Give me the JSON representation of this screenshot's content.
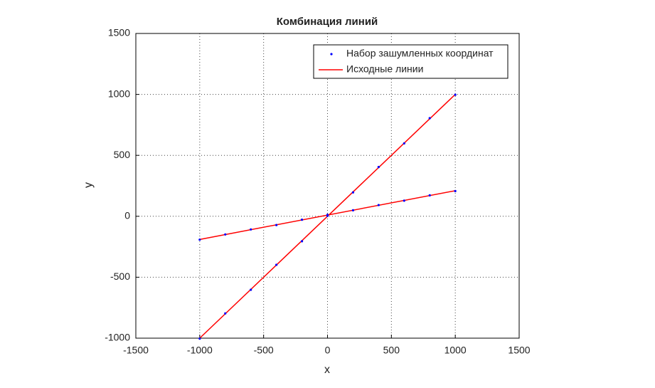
{
  "chart_data": {
    "type": "line",
    "title": "Комбинация линий",
    "xlabel": "x",
    "ylabel": "y",
    "xlim": [
      -1500,
      1500
    ],
    "ylim": [
      -1000,
      1500
    ],
    "xticks": [
      -1500,
      -1000,
      -500,
      0,
      500,
      1000,
      1500
    ],
    "yticks": [
      -1000,
      -500,
      0,
      500,
      1000,
      1500
    ],
    "grid": true,
    "legend": "upper right",
    "series": [
      {
        "name": "Набор зашумленных координат",
        "color": "#0000ff",
        "style": "points",
        "x": [
          -1000,
          -800,
          -600,
          -400,
          -200,
          0,
          200,
          400,
          600,
          800,
          1000,
          -1000,
          -800,
          -600,
          -400,
          -200,
          0,
          200,
          400,
          600,
          800,
          1000
        ],
        "values": [
          -1004,
          -797,
          -603,
          -398,
          -205,
          3,
          196,
          404,
          598,
          805,
          997,
          -192,
          -149,
          -108,
          -72,
          -28,
          12,
          49,
          92,
          128,
          172,
          207
        ]
      },
      {
        "name": "Исходные линии",
        "color": "#ff0000",
        "style": "line",
        "x": [
          -1000,
          1000,
          null,
          -1000,
          1000
        ],
        "values": [
          -1000,
          1000,
          null,
          -190,
          210
        ]
      }
    ]
  }
}
